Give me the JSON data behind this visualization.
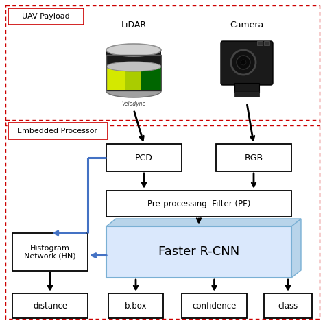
{
  "bg_color": "#ffffff",
  "uav_label": "UAV Payload",
  "embedded_label": "Embedded Processor",
  "lidar_label": "LiDAR",
  "camera_label": "Camera",
  "velodyne_label": "Velodyne",
  "pcd_label": "PCD",
  "rgb_label": "RGB",
  "pf_label": "Pre-processing  Filter (PF)",
  "rcnn_label": "Faster R-CNN",
  "hn_label": "Histogram\nNetwork (HN)",
  "distance_label": "distance",
  "bbox_label": "b.box",
  "confidence_label": "confidence",
  "class_label": "class",
  "arrow_color": "#000000",
  "blue_color": "#4472C4",
  "rcnn_fill": "#DAE8FC",
  "rcnn_side_fill": "#b8d4ea",
  "dashed_color": "#cc0000",
  "label_box_color": "#cc0000"
}
